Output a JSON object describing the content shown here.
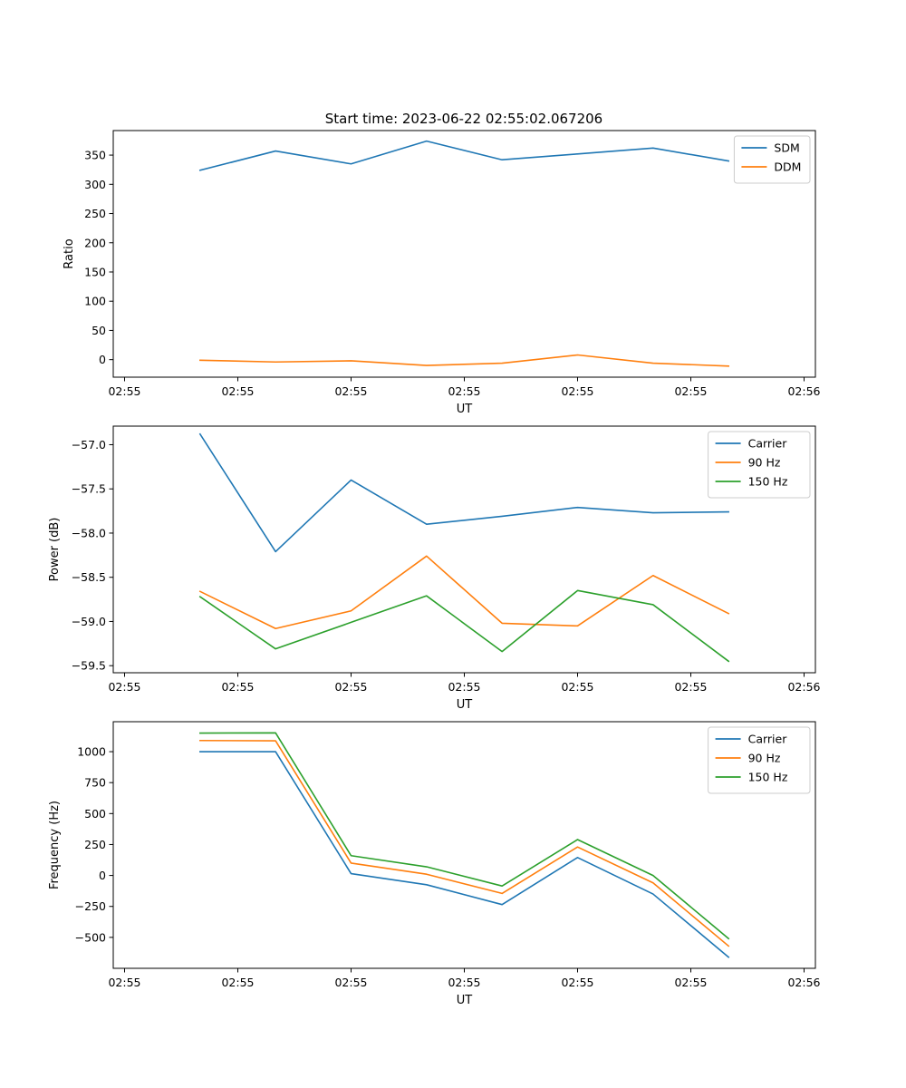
{
  "figure_title": "Start time: 2023-06-22 02:55:02.067206",
  "chart_data": [
    {
      "type": "line",
      "xlabel": "UT",
      "ylabel": "Ratio",
      "x": [
        2,
        4,
        6,
        8,
        10,
        12,
        14,
        16
      ],
      "xlim": [
        -0.3,
        18.3
      ],
      "xticks": [
        0,
        3,
        6,
        9,
        12,
        15,
        18
      ],
      "xticklabels": [
        "02:55",
        "02:55",
        "02:55",
        "02:55",
        "02:55",
        "02:55",
        "02:56"
      ],
      "ylim": [
        -30,
        392
      ],
      "yticks": [
        0,
        50,
        100,
        150,
        200,
        250,
        300,
        350
      ],
      "yticklabels": [
        "0",
        "50",
        "100",
        "150",
        "200",
        "250",
        "300",
        "350"
      ],
      "legend": "top-right",
      "grid": false,
      "series": [
        {
          "name": "SDM",
          "color": "#1f77b4",
          "values": [
            324,
            357,
            335,
            374,
            342,
            352,
            362,
            340
          ]
        },
        {
          "name": "DDM",
          "color": "#ff7f0e",
          "values": [
            -1,
            -4,
            -2,
            -10,
            -6,
            8,
            -6,
            -11
          ]
        }
      ]
    },
    {
      "type": "line",
      "xlabel": "UT",
      "ylabel": "Power (dB)",
      "x": [
        2,
        4,
        6,
        8,
        10,
        12,
        14,
        16
      ],
      "xlim": [
        -0.3,
        18.3
      ],
      "xticks": [
        0,
        3,
        6,
        9,
        12,
        15,
        18
      ],
      "xticklabels": [
        "02:55",
        "02:55",
        "02:55",
        "02:55",
        "02:55",
        "02:55",
        "02:56"
      ],
      "ylim": [
        -59.58,
        -56.79
      ],
      "yticks": [
        -59.5,
        -59.0,
        -58.5,
        -58.0,
        -57.5,
        -57.0
      ],
      "yticklabels": [
        "−59.5",
        "−59.0",
        "−58.5",
        "−58.0",
        "−57.5",
        "−57.0"
      ],
      "legend": "top-right",
      "grid": false,
      "series": [
        {
          "name": "Carrier",
          "color": "#1f77b4",
          "values": [
            -56.88,
            -58.21,
            -57.4,
            -57.9,
            -57.81,
            -57.71,
            -57.77,
            -57.76
          ]
        },
        {
          "name": "90 Hz",
          "color": "#ff7f0e",
          "values": [
            -58.66,
            -59.08,
            -58.88,
            -58.26,
            -59.02,
            -59.05,
            -58.48,
            -58.91
          ]
        },
        {
          "name": "150 Hz",
          "color": "#2ca02c",
          "values": [
            -58.72,
            -59.31,
            -59.01,
            -58.71,
            -59.34,
            -58.65,
            -58.81,
            -59.45
          ]
        }
      ]
    },
    {
      "type": "line",
      "xlabel": "UT",
      "ylabel": "Frequency (Hz)",
      "x": [
        2,
        4,
        6,
        8,
        10,
        12,
        14,
        16
      ],
      "xlim": [
        -0.3,
        18.3
      ],
      "xticks": [
        0,
        3,
        6,
        9,
        12,
        15,
        18
      ],
      "xticklabels": [
        "02:55",
        "02:55",
        "02:55",
        "02:55",
        "02:55",
        "02:55",
        "02:56"
      ],
      "ylim": [
        -750,
        1242
      ],
      "yticks": [
        -500,
        -250,
        0,
        250,
        500,
        750,
        1000
      ],
      "yticklabels": [
        "−500",
        "−250",
        "0",
        "250",
        "500",
        "750",
        "1000"
      ],
      "legend": "top-right",
      "grid": false,
      "series": [
        {
          "name": "Carrier",
          "color": "#1f77b4",
          "values": [
            1000,
            1000,
            15,
            -75,
            -235,
            145,
            -150,
            -660
          ]
        },
        {
          "name": "90 Hz",
          "color": "#ff7f0e",
          "values": [
            1090,
            1088,
            100,
            10,
            -145,
            230,
            -60,
            -570
          ]
        },
        {
          "name": "150 Hz",
          "color": "#2ca02c",
          "values": [
            1150,
            1152,
            160,
            70,
            -85,
            290,
            0,
            -510
          ]
        }
      ]
    }
  ]
}
